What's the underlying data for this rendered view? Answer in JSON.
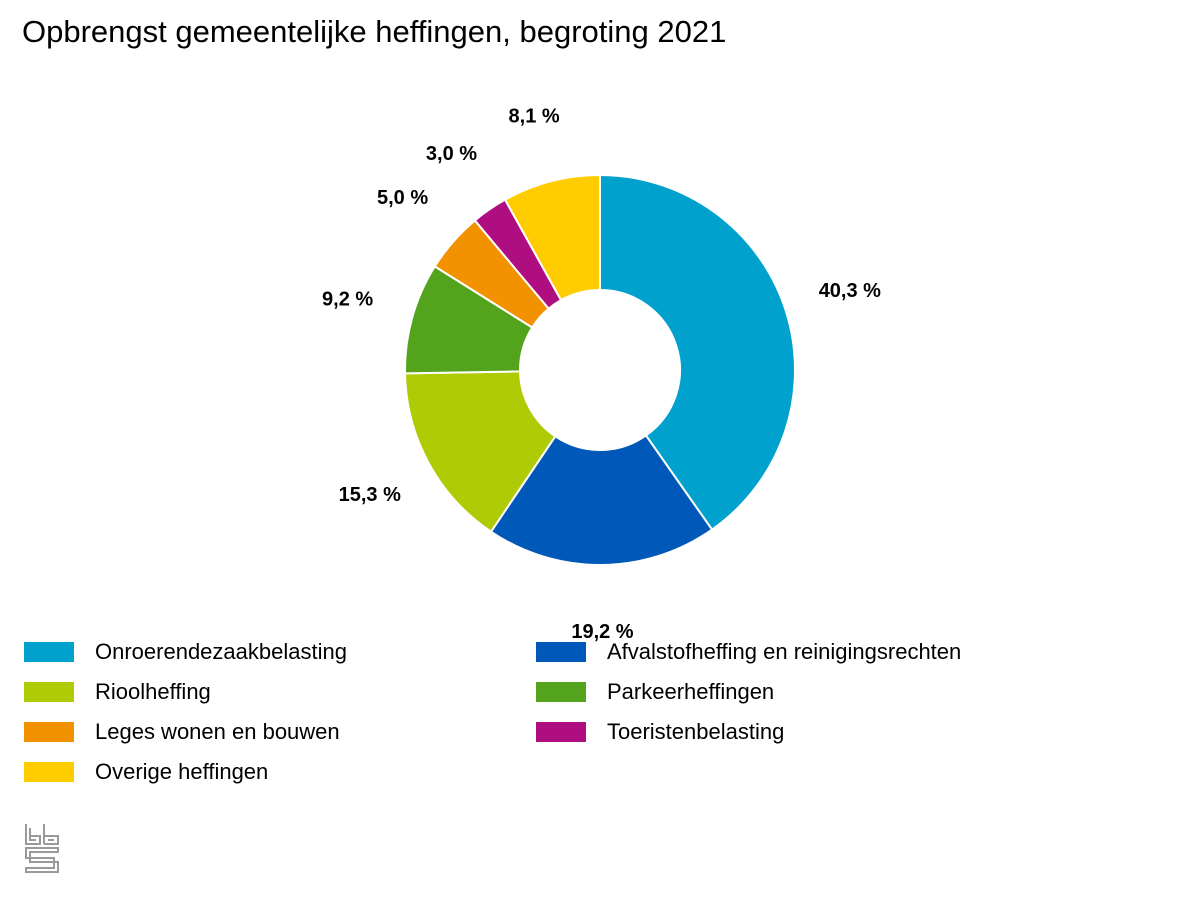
{
  "title": "Opbrengst gemeentelijke heffingen, begroting 2021",
  "logo": {
    "icon": "cbs-logo-icon"
  },
  "chart_data": {
    "type": "pie",
    "style": "donut",
    "title": "Opbrengst gemeentelijke heffingen, begroting 2021",
    "unit": "%",
    "legend_placement": "bottom",
    "series": [
      {
        "name": "Onroerendezaakbelasting",
        "value": 40.3,
        "label": "40,3 %",
        "color": "#00a1cd"
      },
      {
        "name": "Afvalstofheffing en reinigingsrechten",
        "value": 19.2,
        "label": "19,2 %",
        "color": "#0058b8"
      },
      {
        "name": "Rioolheffing",
        "value": 15.3,
        "label": "15,3 %",
        "color": "#afcb05"
      },
      {
        "name": "Parkeerheffingen",
        "value": 9.2,
        "label": "9,2 %",
        "color": "#53a31d"
      },
      {
        "name": "Leges wonen en bouwen",
        "value": 5.0,
        "label": "5,0 %",
        "color": "#f39200"
      },
      {
        "name": "Toeristenbelasting",
        "value": 3.0,
        "label": "3,0 %",
        "color": "#af0e80"
      },
      {
        "name": "Overige heffingen",
        "value": 8.1,
        "label": "8,1 %",
        "color": "#ffcc00"
      }
    ]
  },
  "legend": {
    "items": [
      {
        "label": "Onroerendezaakbelasting",
        "color": "#00a1cd"
      },
      {
        "label": "Afvalstofheffing en reinigingsrechten",
        "color": "#0058b8"
      },
      {
        "label": "Rioolheffing",
        "color": "#afcb05"
      },
      {
        "label": "Parkeerheffingen",
        "color": "#53a31d"
      },
      {
        "label": "Leges wonen en bouwen",
        "color": "#f39200"
      },
      {
        "label": "Toeristenbelasting",
        "color": "#af0e80"
      },
      {
        "label": "Overige heffingen",
        "color": "#ffcc00"
      }
    ]
  }
}
